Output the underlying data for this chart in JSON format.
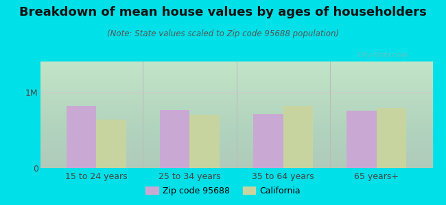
{
  "title": "Breakdown of mean house values by ages of householders",
  "subtitle": "(Note: State values scaled to Zip code 95688 population)",
  "categories": [
    "15 to 24 years",
    "25 to 34 years",
    "35 to 64 years",
    "65 years+"
  ],
  "zip_values": [
    820000,
    760000,
    710000,
    750000
  ],
  "ca_values": [
    640000,
    700000,
    820000,
    790000
  ],
  "ylim": [
    0,
    1400000
  ],
  "yticks": [
    0,
    1000000
  ],
  "ytick_labels": [
    "0",
    "1M"
  ],
  "zip_color": "#c9a8d4",
  "ca_color": "#c8d4a0",
  "outer_bg": "#00e0e8",
  "plot_bg_top": "#f0faf0",
  "plot_bg_bottom": "#f8fff0",
  "legend_zip": "Zip code 95688",
  "legend_ca": "California",
  "bar_width": 0.32,
  "grid_color": "#cccccc",
  "separator_color": "#bbbbbb",
  "title_fontsize": 13,
  "subtitle_fontsize": 8.5,
  "tick_fontsize": 9,
  "legend_fontsize": 9
}
